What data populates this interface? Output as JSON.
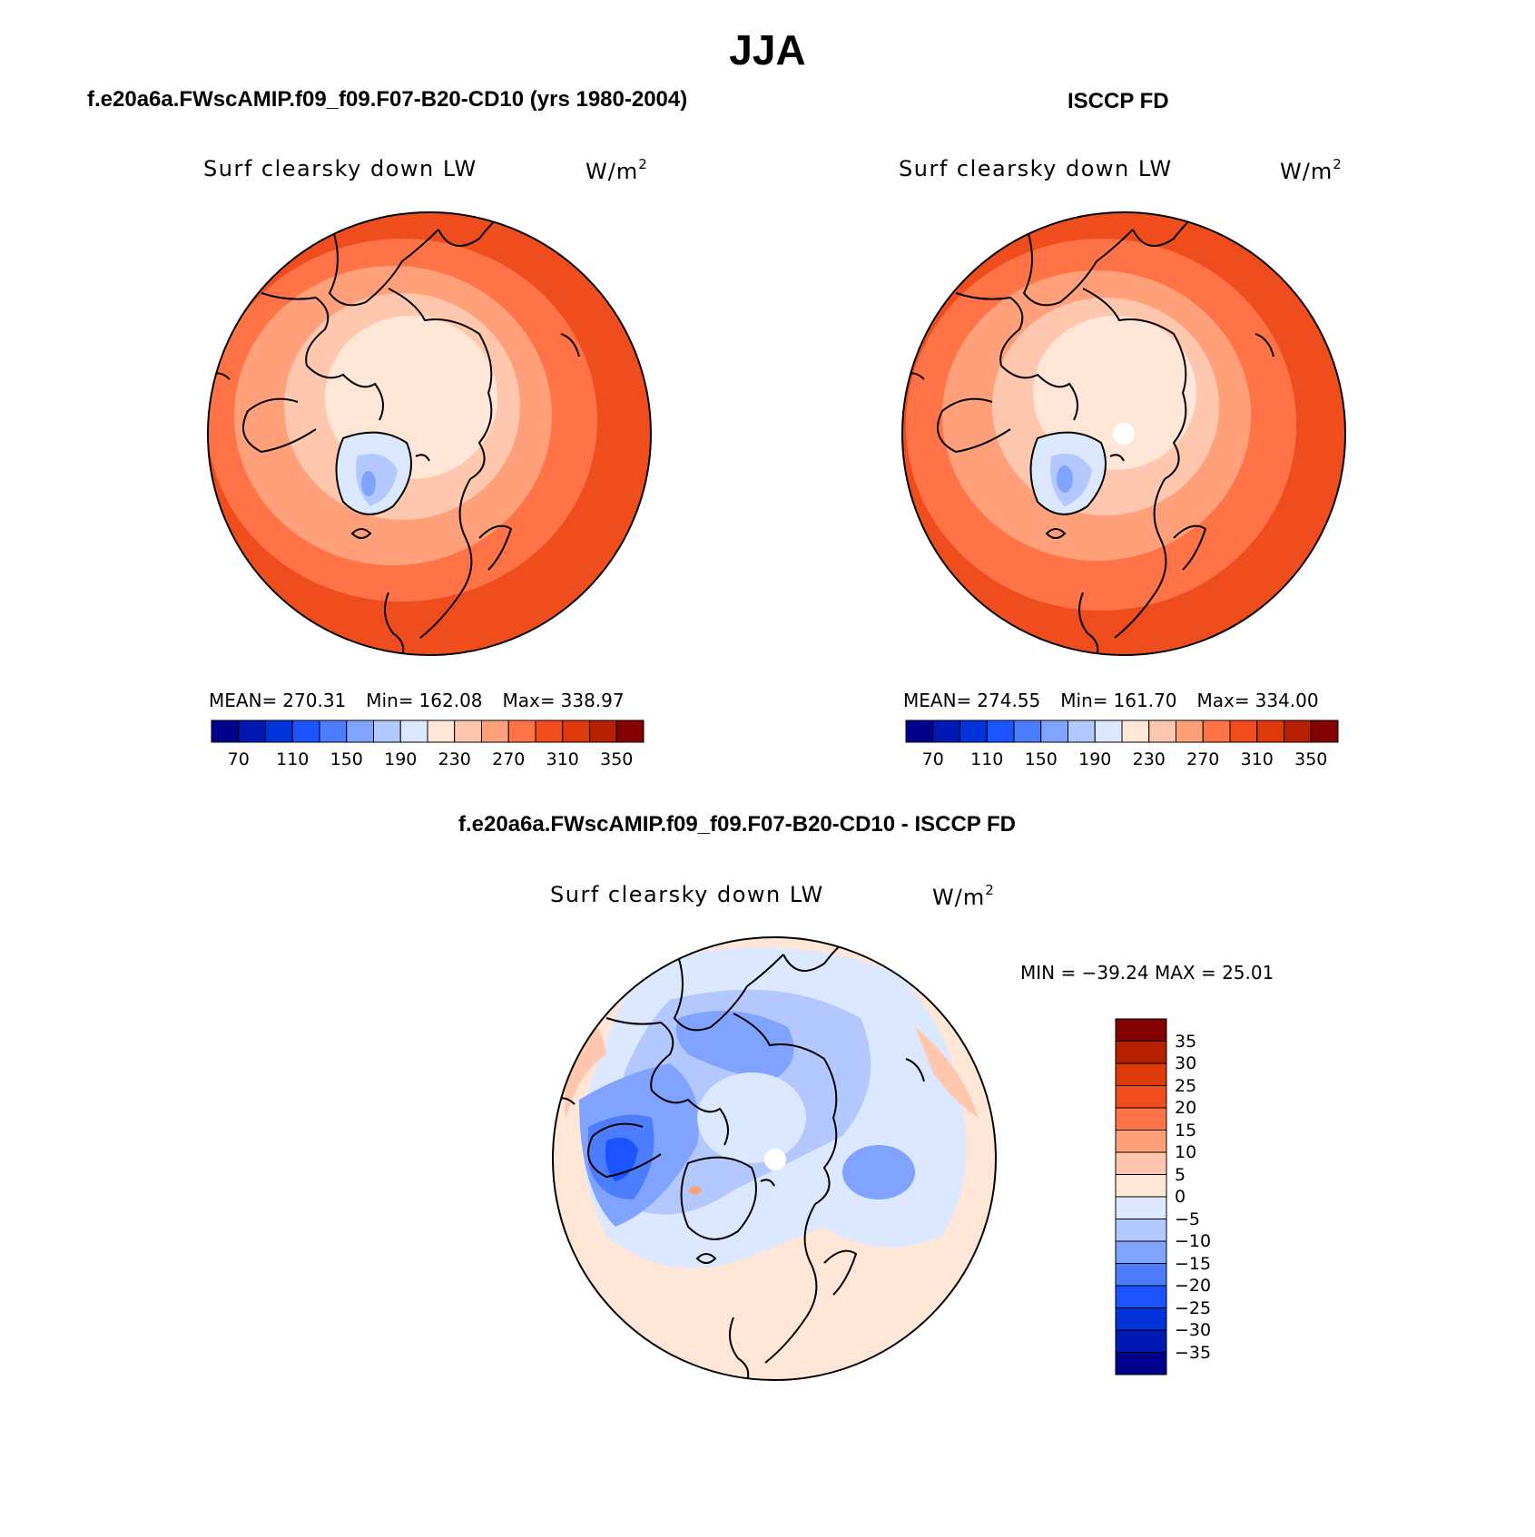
{
  "figure": {
    "title": "JJA",
    "diff_title": "f.e20a6a.FWscAMIP.f09_f09.F07-B20-CD10 - ISCCP FD"
  },
  "panels": [
    {
      "id": "model",
      "header": "f.e20a6a.FWscAMIP.f09_f09.F07-B20-CD10 (yrs 1980-2004)",
      "variable": "Surf clearsky down LW",
      "units": "W/m",
      "units_sup": "2",
      "stats": {
        "mean_label": "MEAN=",
        "mean": "270.31",
        "min_label": "Min=",
        "min": "162.08",
        "max_label": "Max=",
        "max": "338.97"
      }
    },
    {
      "id": "obs",
      "header": "ISCCP FD",
      "variable": "Surf clearsky down LW",
      "units": "W/m",
      "units_sup": "2",
      "stats": {
        "mean_label": "MEAN=",
        "mean": "274.55",
        "min_label": "Min=",
        "min": "161.70",
        "max_label": "Max=",
        "max": "334.00"
      }
    },
    {
      "id": "diff",
      "variable": "Surf clearsky down LW",
      "units": "W/m",
      "units_sup": "2",
      "minmax_text": "MIN = −39.24 MAX =   25.01"
    }
  ],
  "colorbar_abs": {
    "colors": [
      "#00008c",
      "#0019b3",
      "#0033d9",
      "#1a53ff",
      "#4d7dff",
      "#80a3ff",
      "#b3c8ff",
      "#dbe8ff",
      "#ffe6d6",
      "#ffc8ae",
      "#ffa07a",
      "#ff7347",
      "#f04d1e",
      "#dc3a0a",
      "#b42000",
      "#820000"
    ],
    "tick_labels": [
      "70",
      "110",
      "150",
      "190",
      "230",
      "270",
      "310",
      "350"
    ]
  },
  "colorbar_diff": {
    "colors": [
      "#820000",
      "#b42000",
      "#dc3a0a",
      "#f04d1e",
      "#ff7347",
      "#ffa07a",
      "#ffc8ae",
      "#ffe6d6",
      "#dbe8ff",
      "#b3c8ff",
      "#80a3ff",
      "#4d7dff",
      "#1a53ff",
      "#0033d9",
      "#0019b3",
      "#00008c"
    ],
    "tick_labels": [
      "35",
      "30",
      "25",
      "20",
      "15",
      "10",
      "5",
      "0",
      "−5",
      "−10",
      "−15",
      "−20",
      "−25",
      "−30",
      "−35"
    ]
  },
  "map_colors": {
    "c310": "#f04d1e",
    "c290": "#ff7347",
    "c270": "#ffa07a",
    "c250": "#ffc8ae",
    "c230": "#ffe6d6",
    "c190": "#dbe8ff",
    "c170": "#b3c8ff",
    "c150": "#80a3ff",
    "d_pos10": "#ffc8ae",
    "d_pos5": "#ffe6d6",
    "d_neg5": "#dbe8ff",
    "d_neg10": "#b3c8ff",
    "d_neg15": "#80a3ff",
    "d_neg20": "#4d7dff",
    "d_neg25": "#1a53ff",
    "d_pos15": "#ffa07a"
  }
}
